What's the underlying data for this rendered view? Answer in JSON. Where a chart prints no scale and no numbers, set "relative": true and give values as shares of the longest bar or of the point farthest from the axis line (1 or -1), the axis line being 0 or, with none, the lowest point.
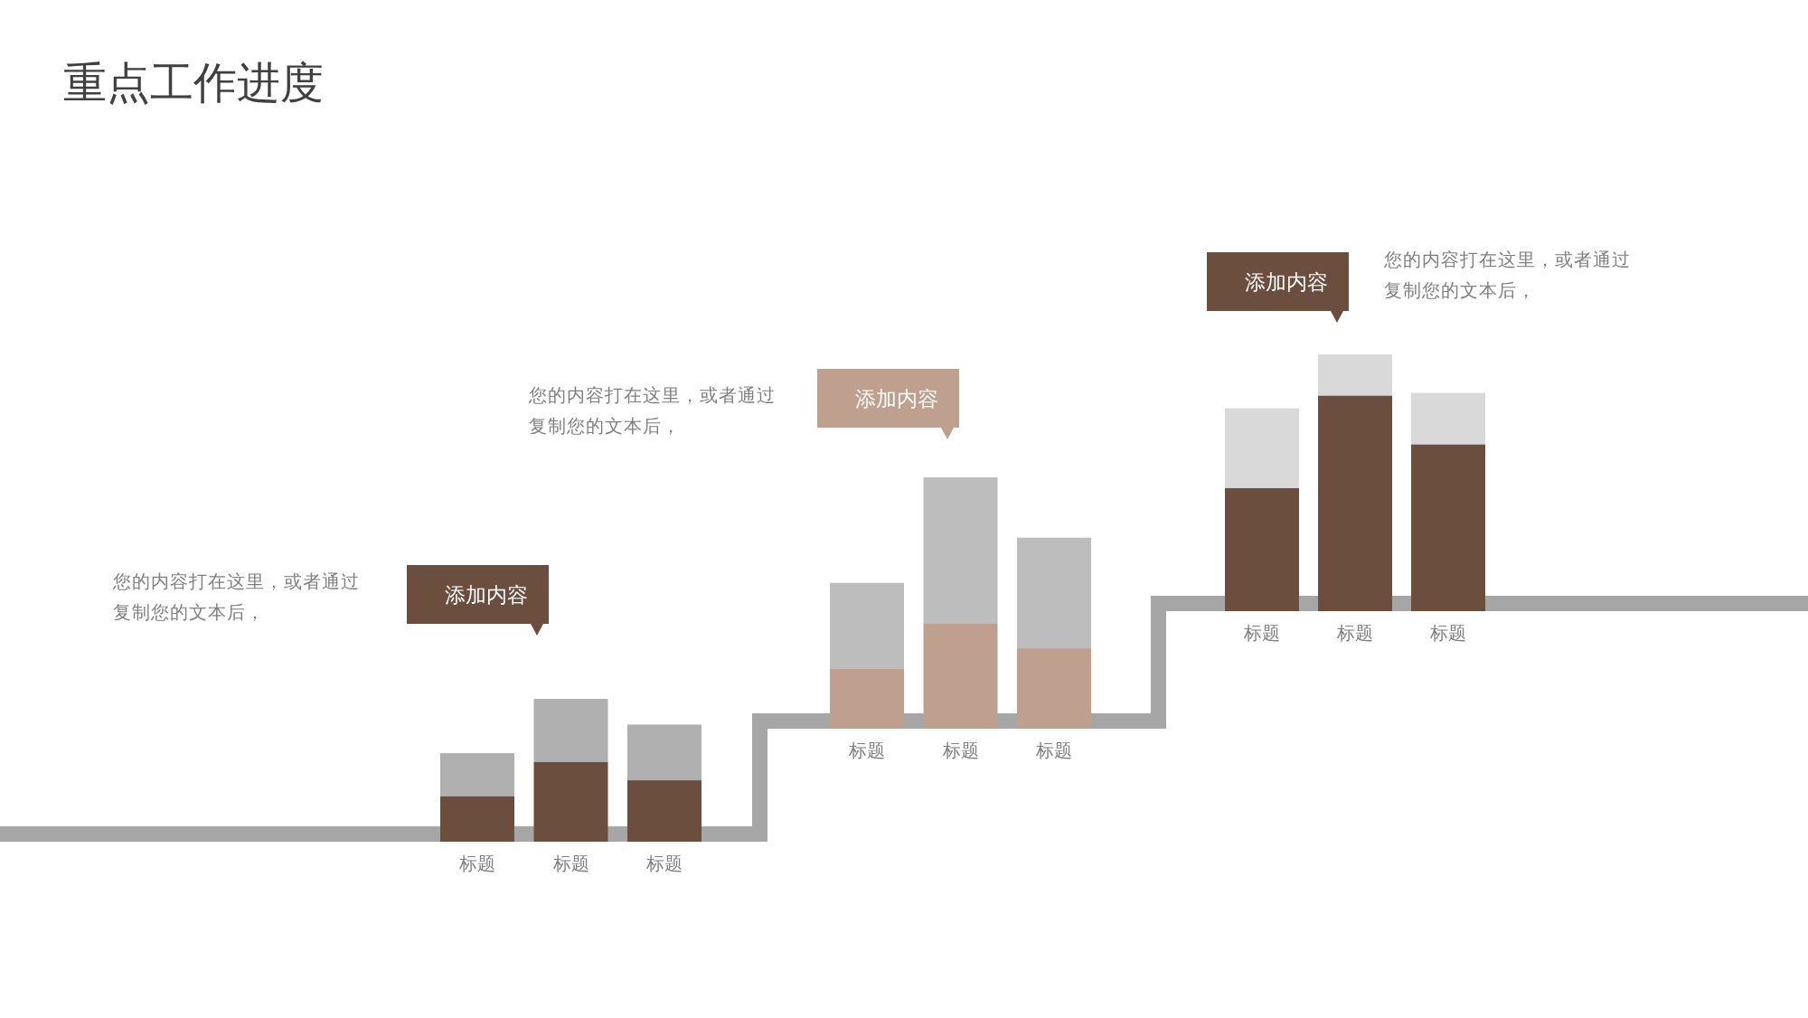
{
  "chart_data": [
    {
      "type": "bar",
      "title": "重点工作进度",
      "stacked": true,
      "relative": true,
      "categories": [
        "标题",
        "标题",
        "标题"
      ],
      "series": [
        {
          "color": "#6b4e3d",
          "values": [
            0.32,
            0.56,
            0.43
          ]
        },
        {
          "color": "#b0b0b0",
          "values": [
            0.3,
            0.44,
            0.39
          ]
        }
      ],
      "annotations": [
        "添加内容",
        "您的内容打在这里，或者通过复制您的文本后，"
      ]
    },
    {
      "type": "bar",
      "stacked": true,
      "relative": true,
      "categories": [
        "标题",
        "标题",
        "标题"
      ],
      "series": [
        {
          "color": "#bfa08e",
          "values": [
            0.24,
            0.42,
            0.32
          ]
        },
        {
          "color": "#bdbdbd",
          "values": [
            0.34,
            0.58,
            0.44
          ]
        }
      ],
      "annotations": [
        "添加内容",
        "您的内容打在这里，或者通过复制您的文本后，"
      ]
    },
    {
      "type": "bar",
      "stacked": true,
      "relative": true,
      "categories": [
        "标题",
        "标题",
        "标题"
      ],
      "series": [
        {
          "color": "#6b4e3d",
          "values": [
            0.48,
            0.84,
            0.65
          ]
        },
        {
          "color": "#d9d9d9",
          "values": [
            0.31,
            0.16,
            0.2
          ]
        }
      ],
      "annotations": [
        "添加内容",
        "您的内容打在这里，或者通过复制您的文本后，"
      ]
    }
  ]
}
